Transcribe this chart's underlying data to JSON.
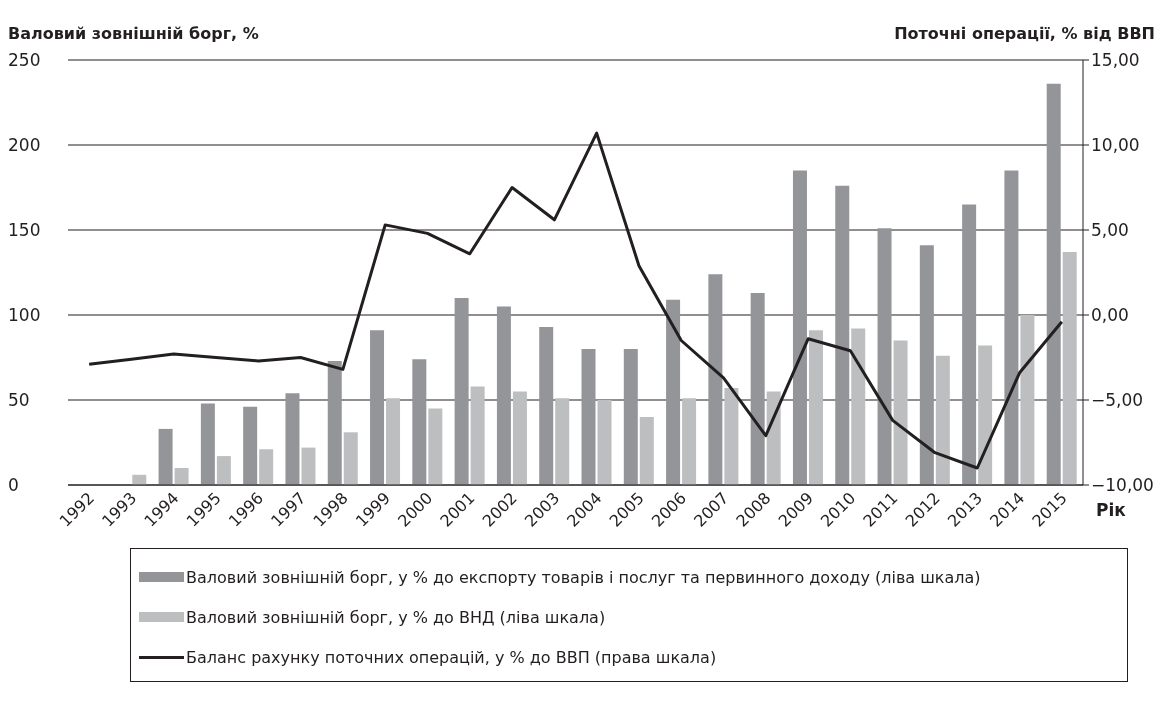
{
  "chart_data": {
    "type": "bar",
    "ylabel": "Валовий зовнішній борг, %",
    "y2label": "Поточні операції, % від ВВП",
    "xlabel": "Рік",
    "categories": [
      "1992",
      "1993",
      "1994",
      "1995",
      "1996",
      "1997",
      "1998",
      "1999",
      "2000",
      "2001",
      "2002",
      "2003",
      "2004",
      "2005",
      "2006",
      "2007",
      "2008",
      "2009",
      "2010",
      "2011",
      "2012",
      "2013",
      "2014",
      "2015"
    ],
    "series": [
      {
        "name": "Валовий зовнішній борг, у % до експорту товарів і послуг та первинного доходу (ліва шкала)",
        "color": "#939598",
        "values": [
          null,
          null,
          33,
          48,
          46,
          54,
          73,
          91,
          74,
          110,
          105,
          93,
          80,
          80,
          109,
          124,
          113,
          185,
          176,
          151,
          141,
          165,
          185,
          236
        ]
      },
      {
        "name": "Валовий зовнішній борг, у % до ВНД (ліва шкала)",
        "color": "#bcbec0",
        "values": [
          null,
          6,
          10,
          17,
          21,
          22,
          31,
          51,
          45,
          58,
          55,
          51,
          50,
          40,
          51,
          57,
          55,
          91,
          92,
          85,
          76,
          82,
          100,
          137
        ]
      },
      {
        "name": "Баланс рахунку поточних операцій, у  % до ВВП (права шкала)",
        "type": "line",
        "axis": "y2",
        "color": "#231f20",
        "values": [
          -2.9,
          -2.6,
          -2.3,
          -2.5,
          -2.7,
          -2.5,
          -3.2,
          5.3,
          4.8,
          3.6,
          7.5,
          5.6,
          10.7,
          2.9,
          -1.5,
          -3.7,
          -7.1,
          -1.4,
          -2.1,
          -6.2,
          -8.1,
          -9.0,
          -3.4,
          -0.4
        ]
      }
    ],
    "ylim": [
      0,
      250
    ],
    "yticks": [
      0,
      50,
      100,
      150,
      200,
      250
    ],
    "y2lim": [
      -10,
      15
    ],
    "y2ticks": [
      {
        "value": -10,
        "label": "−10,00"
      },
      {
        "value": -5,
        "label": "−5,00"
      },
      {
        "value": 0,
        "label": "0,00"
      },
      {
        "value": 5,
        "label": "5,00"
      },
      {
        "value": 10,
        "label": "10,00"
      },
      {
        "value": 15,
        "label": "15,00"
      }
    ],
    "grid": "y",
    "legend": "bottom",
    "marker": "none",
    "line_style": "solid"
  }
}
